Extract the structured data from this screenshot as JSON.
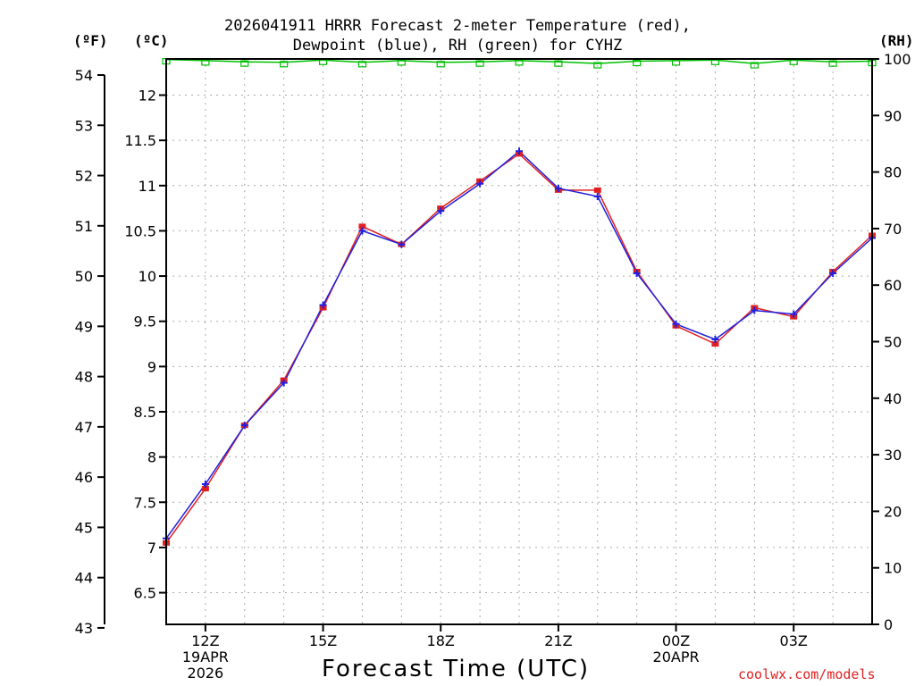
{
  "title": {
    "line1": "2026041911 HRRR Forecast 2-meter Temperature (red),",
    "line2": "Dewpoint (blue), RH (green) for CYHZ"
  },
  "units": {
    "fahrenheit": "(ºF)",
    "celsius": "(ºC)",
    "rh": "(RH)"
  },
  "x_axis_title": "Forecast Time (UTC)",
  "credit": "coolwx.com/models",
  "colors": {
    "temperature": "#e02020",
    "dewpoint": "#2020e0",
    "rh": "#00c000",
    "grid": "#aaaaaa"
  },
  "chart_data": {
    "type": "line",
    "title": "2026041911 HRRR Forecast 2-meter Temperature (red), Dewpoint (blue), RH (green) for CYHZ",
    "xlabel": "Forecast Time (UTC)",
    "hours": [
      11,
      12,
      13,
      14,
      15,
      16,
      17,
      18,
      19,
      20,
      21,
      22,
      23,
      24,
      25,
      26,
      27,
      28,
      29
    ],
    "x_ticks": [
      {
        "hour": 12,
        "lines": [
          "12Z",
          "19APR",
          "2026"
        ]
      },
      {
        "hour": 15,
        "lines": [
          "15Z"
        ]
      },
      {
        "hour": 18,
        "lines": [
          "18Z"
        ]
      },
      {
        "hour": 21,
        "lines": [
          "21Z"
        ]
      },
      {
        "hour": 24,
        "lines": [
          "00Z",
          "20APR"
        ]
      },
      {
        "hour": 27,
        "lines": [
          "03Z"
        ]
      }
    ],
    "x_range": [
      11,
      29
    ],
    "y_celsius": {
      "range": [
        6.15,
        12.4
      ],
      "ticks": [
        6.5,
        7,
        7.5,
        8,
        8.5,
        9,
        9.5,
        10,
        10.5,
        11,
        11.5,
        12
      ],
      "tick_labels": [
        "6.5",
        "7",
        "7.5",
        "8",
        "8.5",
        "9",
        "9.5",
        "10",
        "10.5",
        "11",
        "11.5",
        "12"
      ]
    },
    "y_fahrenheit": {
      "ticks": [
        43,
        44,
        45,
        46,
        47,
        48,
        49,
        50,
        51,
        52,
        53,
        54
      ],
      "tick_labels": [
        "43",
        "44",
        "45",
        "46",
        "47",
        "48",
        "49",
        "50",
        "51",
        "52",
        "53",
        "54"
      ]
    },
    "y_rh": {
      "range": [
        0,
        100
      ],
      "ticks": [
        0,
        10,
        20,
        30,
        40,
        50,
        60,
        70,
        80,
        90,
        100
      ],
      "tick_labels": [
        "0",
        "10",
        "20",
        "30",
        "40",
        "50",
        "60",
        "70",
        "80",
        "90",
        "100"
      ]
    },
    "grid": true,
    "series": [
      {
        "name": "Temperature",
        "units": "C",
        "values": [
          7.05,
          7.65,
          8.35,
          8.85,
          9.65,
          10.55,
          10.35,
          10.75,
          11.05,
          11.35,
          10.95,
          10.95,
          10.05,
          9.45,
          9.25,
          9.65,
          9.55,
          10.05,
          10.45
        ]
      },
      {
        "name": "Dewpoint",
        "units": "C",
        "values": [
          7.1,
          7.7,
          8.35,
          8.82,
          9.68,
          10.5,
          10.35,
          10.72,
          11.02,
          11.38,
          10.97,
          10.88,
          10.03,
          9.47,
          9.3,
          9.62,
          9.58,
          10.03,
          10.42
        ]
      },
      {
        "name": "RH",
        "units": "%",
        "values": [
          99.9,
          99.7,
          99.5,
          99.4,
          99.8,
          99.4,
          99.7,
          99.4,
          99.5,
          99.7,
          99.5,
          99.2,
          99.6,
          99.7,
          99.8,
          99.2,
          99.8,
          99.5,
          99.6
        ]
      }
    ]
  }
}
